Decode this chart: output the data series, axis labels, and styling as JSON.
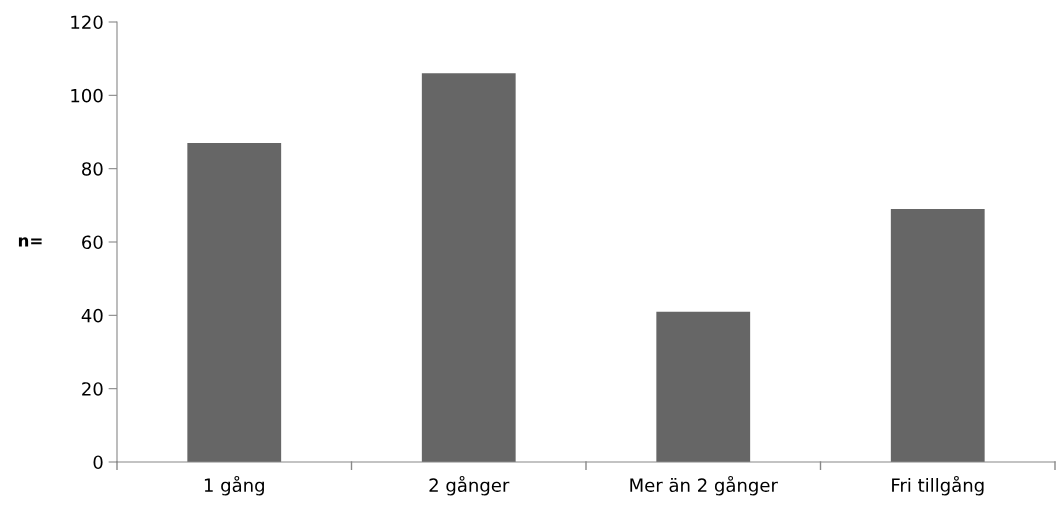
{
  "chart_data": {
    "type": "bar",
    "ylabel": "n=",
    "categories": [
      "1 gång",
      "2 gånger",
      "Mer än 2 gånger",
      "Fri tillgång"
    ],
    "values": [
      87,
      106,
      41,
      69
    ],
    "color": "#666666",
    "ylim": [
      0,
      120
    ],
    "yticks": [
      0,
      20,
      40,
      60,
      80,
      100,
      120
    ],
    "grid": false
  }
}
